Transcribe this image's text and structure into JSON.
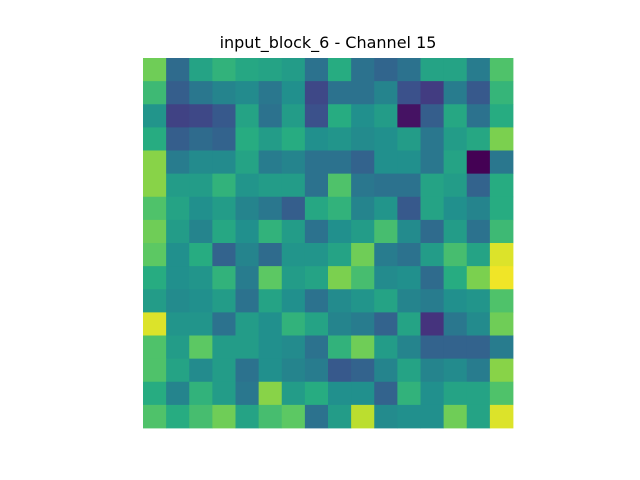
{
  "chart_data": {
    "type": "heatmap",
    "title": "input_block_6 - Channel 15",
    "xlabel": "",
    "ylabel": "",
    "colormap": "viridis",
    "axes_visible": false,
    "grid": false,
    "rows": 16,
    "cols": 16,
    "value_range": [
      0,
      1
    ],
    "values": [
      [
        0.78,
        0.35,
        0.58,
        0.65,
        0.6,
        0.58,
        0.55,
        0.38,
        0.62,
        0.38,
        0.33,
        0.38,
        0.58,
        0.58,
        0.42,
        0.72
      ],
      [
        0.68,
        0.3,
        0.4,
        0.45,
        0.48,
        0.4,
        0.5,
        0.22,
        0.38,
        0.38,
        0.45,
        0.25,
        0.18,
        0.42,
        0.28,
        0.66
      ],
      [
        0.52,
        0.2,
        0.22,
        0.28,
        0.58,
        0.38,
        0.55,
        0.25,
        0.62,
        0.5,
        0.55,
        0.05,
        0.3,
        0.6,
        0.38,
        0.62
      ],
      [
        0.62,
        0.3,
        0.35,
        0.32,
        0.62,
        0.55,
        0.62,
        0.5,
        0.52,
        0.48,
        0.5,
        0.55,
        0.4,
        0.55,
        0.6,
        0.8
      ],
      [
        0.82,
        0.42,
        0.48,
        0.48,
        0.58,
        0.42,
        0.45,
        0.38,
        0.38,
        0.32,
        0.5,
        0.5,
        0.4,
        0.58,
        0.0,
        0.4
      ],
      [
        0.82,
        0.55,
        0.55,
        0.65,
        0.52,
        0.55,
        0.55,
        0.38,
        0.72,
        0.4,
        0.38,
        0.38,
        0.58,
        0.55,
        0.32,
        0.62
      ],
      [
        0.72,
        0.58,
        0.5,
        0.55,
        0.45,
        0.4,
        0.3,
        0.6,
        0.65,
        0.45,
        0.52,
        0.28,
        0.58,
        0.5,
        0.45,
        0.62
      ],
      [
        0.78,
        0.55,
        0.45,
        0.6,
        0.5,
        0.65,
        0.55,
        0.38,
        0.5,
        0.55,
        0.7,
        0.48,
        0.35,
        0.55,
        0.38,
        0.68
      ],
      [
        0.75,
        0.5,
        0.62,
        0.32,
        0.45,
        0.35,
        0.52,
        0.52,
        0.58,
        0.78,
        0.42,
        0.38,
        0.55,
        0.7,
        0.58,
        0.95
      ],
      [
        0.62,
        0.5,
        0.52,
        0.65,
        0.42,
        0.75,
        0.55,
        0.58,
        0.8,
        0.7,
        0.48,
        0.5,
        0.35,
        0.62,
        0.8,
        0.98
      ],
      [
        0.55,
        0.48,
        0.5,
        0.55,
        0.38,
        0.58,
        0.5,
        0.38,
        0.48,
        0.52,
        0.58,
        0.45,
        0.42,
        0.5,
        0.52,
        0.72
      ],
      [
        0.95,
        0.52,
        0.52,
        0.38,
        0.55,
        0.5,
        0.65,
        0.58,
        0.45,
        0.42,
        0.32,
        0.58,
        0.15,
        0.4,
        0.48,
        0.78
      ],
      [
        0.72,
        0.55,
        0.75,
        0.55,
        0.55,
        0.5,
        0.48,
        0.38,
        0.65,
        0.78,
        0.55,
        0.45,
        0.32,
        0.32,
        0.32,
        0.42
      ],
      [
        0.72,
        0.58,
        0.48,
        0.55,
        0.38,
        0.5,
        0.45,
        0.42,
        0.28,
        0.32,
        0.45,
        0.58,
        0.45,
        0.48,
        0.42,
        0.82
      ],
      [
        0.62,
        0.45,
        0.65,
        0.55,
        0.4,
        0.82,
        0.55,
        0.62,
        0.5,
        0.5,
        0.32,
        0.65,
        0.5,
        0.58,
        0.58,
        0.72
      ],
      [
        0.72,
        0.62,
        0.7,
        0.78,
        0.58,
        0.7,
        0.75,
        0.38,
        0.55,
        0.9,
        0.48,
        0.5,
        0.5,
        0.78,
        0.58,
        0.95
      ]
    ]
  }
}
